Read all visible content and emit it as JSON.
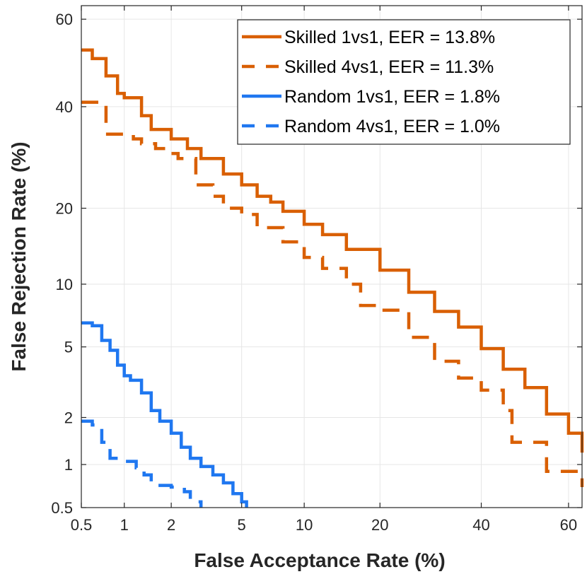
{
  "chart_data": {
    "type": "line",
    "title": "",
    "xlabel": "False Acceptance Rate (%)",
    "ylabel": "False Rejection Rate (%)",
    "xscale": "det-probit",
    "yscale": "det-probit",
    "xlim": [
      0.5,
      63
    ],
    "ylim": [
      0.5,
      63
    ],
    "xticks": [
      0.5,
      1,
      2,
      5,
      10,
      20,
      40,
      60
    ],
    "xtick_labels": [
      "0.5",
      "1",
      "2",
      "5",
      "10",
      "20",
      "40",
      "60"
    ],
    "yticks": [
      0.5,
      1,
      2,
      5,
      10,
      20,
      40,
      60
    ],
    "ytick_labels": [
      "0.5",
      "1",
      "2",
      "5",
      "10",
      "20",
      "40",
      "60"
    ],
    "grid": true,
    "legend_position": "top-right",
    "series": [
      {
        "name": "Skilled 1vs1, EER = 13.8%",
        "color": "#d95f02",
        "style": "solid",
        "x": [
          0.5,
          0.6,
          0.75,
          0.9,
          1.0,
          1.3,
          1.5,
          2.0,
          2.5,
          3.0,
          4.0,
          5.0,
          6.0,
          7.0,
          8.0,
          10.0,
          12.0,
          15.0,
          20.0,
          25.0,
          30.0,
          35.0,
          40.0,
          45.0,
          50.0,
          55.0,
          60.0,
          63.0
        ],
        "y": [
          53,
          51,
          47,
          43,
          42,
          38,
          35,
          33,
          31,
          29,
          26,
          24,
          22,
          21,
          19.5,
          17.5,
          16,
          14,
          11.5,
          9.2,
          7.5,
          6.3,
          4.9,
          3.8,
          3.0,
          2.1,
          1.6,
          1.2
        ]
      },
      {
        "name": "Skilled 4vs1, EER = 11.3%",
        "color": "#d95f02",
        "style": "dashed",
        "x": [
          0.5,
          0.7,
          0.75,
          1.0,
          1.15,
          1.3,
          1.6,
          2.0,
          2.2,
          2.8,
          3.5,
          4.0,
          5.0,
          6.0,
          8.0,
          10.0,
          12.0,
          15.0,
          17.0,
          20.0,
          25.0,
          30.0,
          35.0,
          40.0,
          45.0,
          47.0,
          50.0,
          55.0,
          60.0,
          63.0
        ],
        "y": [
          41,
          41,
          34,
          34,
          33,
          32,
          31,
          30,
          29,
          24,
          22,
          20,
          19,
          17,
          15,
          13,
          11.7,
          10,
          8,
          7.6,
          5.6,
          4.2,
          3.4,
          2.9,
          2.2,
          1.4,
          1.4,
          0.9,
          0.9,
          0.7
        ]
      },
      {
        "name": "Random 1vs1, EER = 1.8%",
        "color": "#1f77f0",
        "style": "solid",
        "x": [
          0.5,
          0.6,
          0.7,
          0.8,
          0.9,
          1.0,
          1.1,
          1.3,
          1.5,
          1.7,
          2.0,
          2.3,
          2.6,
          3.0,
          3.5,
          4.0,
          4.5,
          5.0,
          5.3
        ],
        "y": [
          6.6,
          6.4,
          5.4,
          4.8,
          4.0,
          3.5,
          3.3,
          2.8,
          2.2,
          1.9,
          1.6,
          1.3,
          1.1,
          0.97,
          0.85,
          0.75,
          0.63,
          0.55,
          0.5
        ]
      },
      {
        "name": "Random 4vs1, EER = 1.0%",
        "color": "#1f77f0",
        "style": "dashed",
        "x": [
          0.5,
          0.6,
          0.7,
          0.8,
          1.0,
          1.2,
          1.35,
          1.5,
          2.0,
          2.4,
          2.6,
          3.0
        ],
        "y": [
          1.9,
          1.8,
          1.4,
          1.1,
          1.05,
          0.95,
          0.85,
          0.72,
          0.7,
          0.65,
          0.55,
          0.5
        ]
      }
    ]
  }
}
